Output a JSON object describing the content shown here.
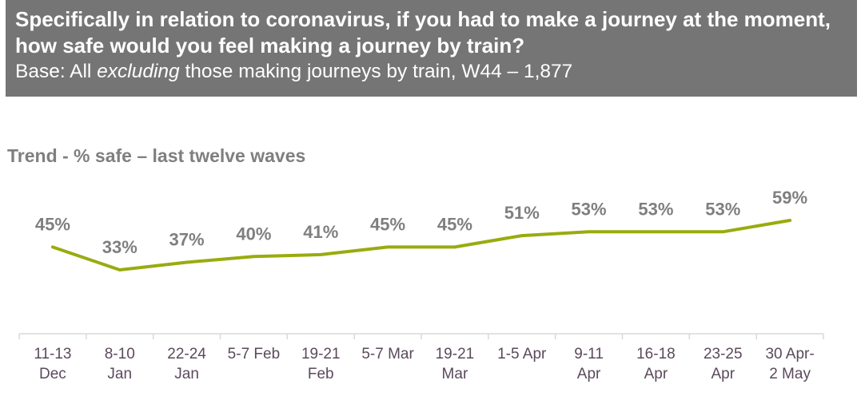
{
  "header": {
    "question": "Specifically in relation to coronavirus, if you had to make a journey at the moment, how safe would you feel making a journey by train?",
    "base_prefix": "Base: All ",
    "base_emphasis": "excluding",
    "base_suffix": " those making journeys by train, W44 – 1,877"
  },
  "chart_data": {
    "type": "line",
    "title": "Trend - % safe – last twelve waves",
    "categories": [
      [
        "11-13",
        "Dec"
      ],
      [
        "8-10",
        "Jan"
      ],
      [
        "22-24",
        "Jan"
      ],
      [
        "5-7 Feb"
      ],
      [
        "19-21",
        "Feb"
      ],
      [
        "5-7 Mar"
      ],
      [
        "19-21",
        "Mar"
      ],
      [
        "1-5 Apr"
      ],
      [
        "9-11",
        "Apr"
      ],
      [
        "16-18",
        "Apr"
      ],
      [
        "23-25",
        "Apr"
      ],
      [
        "30 Apr-",
        "2 May"
      ]
    ],
    "values": [
      45,
      33,
      37,
      40,
      41,
      45,
      45,
      51,
      53,
      53,
      53,
      59
    ],
    "data_labels": [
      "45%",
      "33%",
      "37%",
      "40%",
      "41%",
      "45%",
      "45%",
      "51%",
      "53%",
      "53%",
      "53%",
      "59%"
    ],
    "ylim": [
      0,
      100
    ],
    "grid": false,
    "line_color": "#9aab0f",
    "axis_color": "#d9d9d9"
  }
}
